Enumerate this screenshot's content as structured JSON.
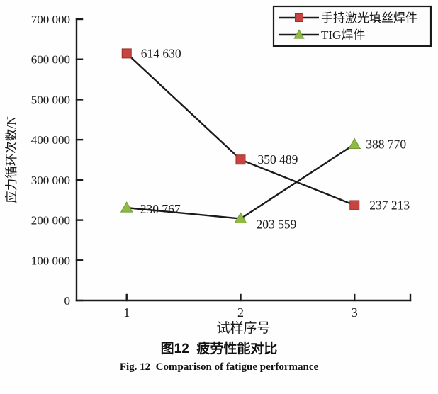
{
  "figure": {
    "caption_zh": "图12  疲劳性能对比",
    "caption_en": "Fig. 12  Comparison of fatigue performance"
  },
  "chart_data": {
    "type": "line",
    "title": "",
    "xlabel": "试样序号",
    "ylabel": "应力循环次数/N",
    "xlim": [
      0.56,
      3.49
    ],
    "ylim": [
      0,
      700000
    ],
    "xticks": [
      1,
      2,
      3
    ],
    "xtick_labels": [
      "1",
      "2",
      "3"
    ],
    "ytick_step": 100000,
    "ytick_labels": [
      "0",
      "100 000",
      "200 000",
      "300 000",
      "400 000",
      "500 000",
      "600 000",
      "700 000"
    ],
    "grid": false,
    "legend_position": "top-right",
    "x": [
      1,
      2,
      3
    ],
    "series": [
      {
        "name": "手持激光填丝焊件",
        "marker": "square",
        "marker_color": "#c64540",
        "marker_edge": "#9c2f2b",
        "values": [
          614630,
          350489,
          237213
        ],
        "point_labels": [
          "614 630",
          "350 489",
          "237 213"
        ]
      },
      {
        "name": "TIG焊件",
        "marker": "triangle",
        "marker_color": "#90ba44",
        "marker_edge": "#6f9a30",
        "values": [
          230767,
          203559,
          388770
        ],
        "point_labels": [
          "230 767",
          "203 559",
          "388 770"
        ]
      }
    ],
    "line_color": "#1a1a1a",
    "axis_color": "#1a1a1a",
    "text_color": "#1a1a1a"
  }
}
